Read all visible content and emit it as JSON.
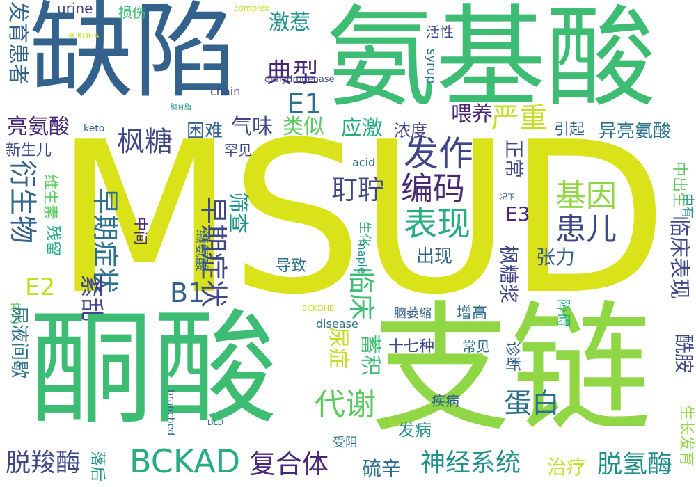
{
  "palette": {
    "dark_purple": "#482777",
    "indigo": "#3f4788",
    "blue": "#33638d",
    "teal_blue": "#2c728e",
    "teal": "#21918c",
    "sea_green": "#27ad81",
    "green": "#3dbc74",
    "light_green": "#5ec962",
    "lime": "#8fd744",
    "yellow_green": "#c2df23",
    "yellow": "#dae319"
  },
  "words": [
    {
      "text": "MSUD"
    },
    {
      "text": "氨基酸"
    },
    {
      "text": "缺陷"
    },
    {
      "text": "酮酸"
    },
    {
      "text": "支链"
    },
    {
      "text": "BCKAD"
    },
    {
      "text": "脱羧酶"
    },
    {
      "text": "复合体"
    },
    {
      "text": "神经系统"
    },
    {
      "text": "脱氢酶"
    },
    {
      "text": "治疗"
    },
    {
      "text": "硫辛"
    },
    {
      "text": "代谢"
    },
    {
      "text": "蛋白"
    },
    {
      "text": "发病"
    },
    {
      "text": "受阻"
    },
    {
      "text": "疾病"
    },
    {
      "text": "表现"
    },
    {
      "text": "编码"
    },
    {
      "text": "发作"
    },
    {
      "text": "基因"
    },
    {
      "text": "患儿"
    },
    {
      "text": "典型"
    },
    {
      "text": "枫糖"
    },
    {
      "text": "亮氨酸"
    },
    {
      "text": "异亮氨酸"
    },
    {
      "text": "E1"
    },
    {
      "text": "E2"
    },
    {
      "text": "E3"
    },
    {
      "text": "B1"
    },
    {
      "text": "严重"
    },
    {
      "text": "应激"
    },
    {
      "text": "激惹"
    },
    {
      "text": "喂养"
    },
    {
      "text": "浓度"
    },
    {
      "text": "引起"
    },
    {
      "text": "气味"
    },
    {
      "text": "类似"
    },
    {
      "text": "困难"
    },
    {
      "text": "出现"
    },
    {
      "text": "早期症状"
    },
    {
      "text": "耵聍"
    },
    {
      "text": "脑病"
    },
    {
      "text": "张力"
    },
    {
      "text": "临床"
    },
    {
      "text": "尿症"
    },
    {
      "text": "蓄积"
    },
    {
      "text": "酰胺"
    },
    {
      "text": "紊乱"
    },
    {
      "text": "导致"
    },
    {
      "text": "增高"
    },
    {
      "text": "脑萎缩"
    },
    {
      "text": "十七种"
    },
    {
      "text": "常见"
    },
    {
      "text": "罕见"
    },
    {
      "text": "筛查"
    },
    {
      "text": "新生儿"
    },
    {
      "text": "诊断"
    },
    {
      "text": "生长发育"
    },
    {
      "text": "中出生"
    },
    {
      "text": "中有"
    },
    {
      "text": "活性"
    },
    {
      "text": "损伤"
    },
    {
      "text": "障碍"
    },
    {
      "text": "况下"
    },
    {
      "text": "脑苷脂"
    },
    {
      "text": "中间"
    },
    {
      "text": "缬氨酸"
    },
    {
      "text": "维生素"
    },
    {
      "text": "残留"
    },
    {
      "text": "体内"
    },
    {
      "text": "落后"
    },
    {
      "text": "生化"
    },
    {
      "text": "衍生物"
    },
    {
      "text": "发育患者"
    },
    {
      "text": "尿液间歇"
    },
    {
      "text": "枫糖浆"
    },
    {
      "text": "临床表现"
    },
    {
      "text": "正常"
    },
    {
      "text": "urine"
    },
    {
      "text": "complex"
    },
    {
      "text": "BCKDHA"
    },
    {
      "text": "chain"
    },
    {
      "text": "dehydrogenase"
    },
    {
      "text": "keto"
    },
    {
      "text": "acid"
    },
    {
      "text": "maple"
    },
    {
      "text": "syrup"
    },
    {
      "text": "disease"
    },
    {
      "text": "BCKDHB"
    },
    {
      "text": "branched"
    },
    {
      "text": "DLD"
    },
    {
      "text": "DBT"
    }
  ]
}
